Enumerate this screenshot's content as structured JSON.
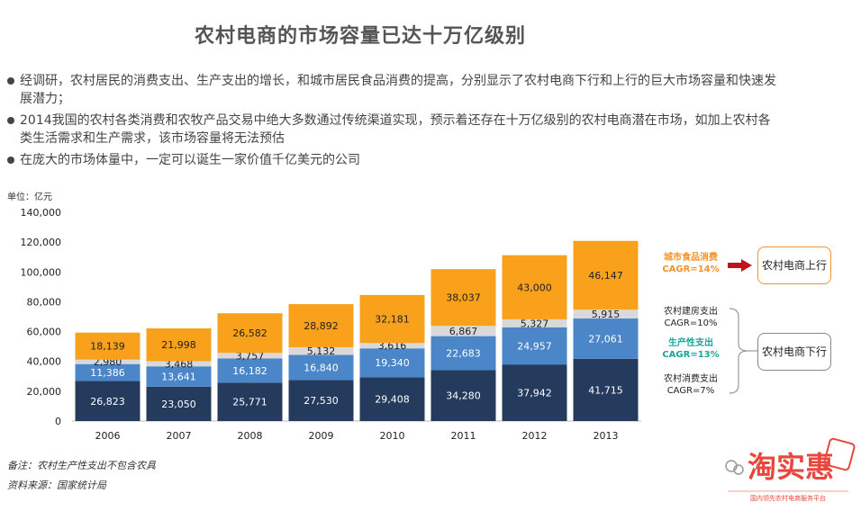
{
  "page": {
    "title": "农村电商的市场容量已达十万亿级别",
    "bullets": [
      "经调研，农村居民的消费支出、生产支出的增长，和城市居民食品消费的提高，分别显示了农村电商下行和上行的巨大市场容量和快速发展潜力；",
      "2014我国的农村各类消费和农牧产品交易中绝大多数通过传统渠道实现，预示着还存在十万亿级别的农村电商潜在市场，如加上农村各类生活需求和生产需求，该市场容量将无法预估",
      "在庞大的市场体量中，一定可以诞生一家价值千亿美元的公司"
    ],
    "unit": "单位：亿元",
    "note1": "备注：农村生产性支出不包含农具",
    "note2": "资料来源：国家统计局"
  },
  "right_panel": {
    "city_food_label": "城市食品消费",
    "city_food_cagr": "CAGR=14%",
    "up_box": "农村电商上行",
    "housing_label": "农村建房支出",
    "housing_cagr": "CAGR=10%",
    "production_label": "生产性支出",
    "production_cagr": "CAGR=13%",
    "consume_label": "农村消费支出",
    "consume_cagr": "CAGR=7%",
    "down_box": "农村电商下行"
  },
  "logo": {
    "text": "淘实惠",
    "tagline": "国内领先农村电商服务平台"
  },
  "colors": {
    "consume": "#243b5e",
    "production": "#4a86c8",
    "housing": "#d9d9d9",
    "city_food": "#f9a11b",
    "accent_red": "#c0141b",
    "orange_text": "#f4922b",
    "teal_text": "#1aa59a"
  },
  "chart_data": {
    "type": "bar",
    "stacked": true,
    "categories": [
      "2006",
      "2007",
      "2008",
      "2009",
      "2010",
      "2011",
      "2012",
      "2013"
    ],
    "series": [
      {
        "key": "consume",
        "values": [
          26823,
          23050,
          25771,
          27530,
          29408,
          34280,
          37942,
          41715
        ],
        "labels": [
          "26,823",
          "23,050",
          "25,771",
          "27,530",
          "29,408",
          "34,280",
          "37,942",
          "41,715"
        ]
      },
      {
        "key": "production",
        "values": [
          11386,
          13641,
          16182,
          16840,
          19340,
          22683,
          24957,
          27061
        ],
        "labels": [
          "11,386",
          "13,641",
          "16,182",
          "16,840",
          "19,340",
          "22,683",
          "24,957",
          "27,061"
        ]
      },
      {
        "key": "housing",
        "values": [
          2980,
          3468,
          3757,
          5132,
          3616,
          6867,
          5327,
          5915
        ],
        "labels": [
          "2,980",
          "3,468",
          "3,757",
          "5,132",
          "3,616",
          "6,867",
          "5,327",
          "5,915"
        ]
      },
      {
        "key": "city_food",
        "values": [
          18139,
          21998,
          26582,
          28892,
          32181,
          38037,
          43000,
          46147
        ],
        "labels": [
          "18,139",
          "21,998",
          "26,582",
          "28,892",
          "32,181",
          "38,037",
          "43,000",
          "46,147"
        ]
      }
    ],
    "yticks": [
      "0",
      "20,000",
      "40,000",
      "60,000",
      "80,000",
      "100,000",
      "120,000",
      "140,000"
    ],
    "ylim": [
      0,
      140000
    ]
  }
}
